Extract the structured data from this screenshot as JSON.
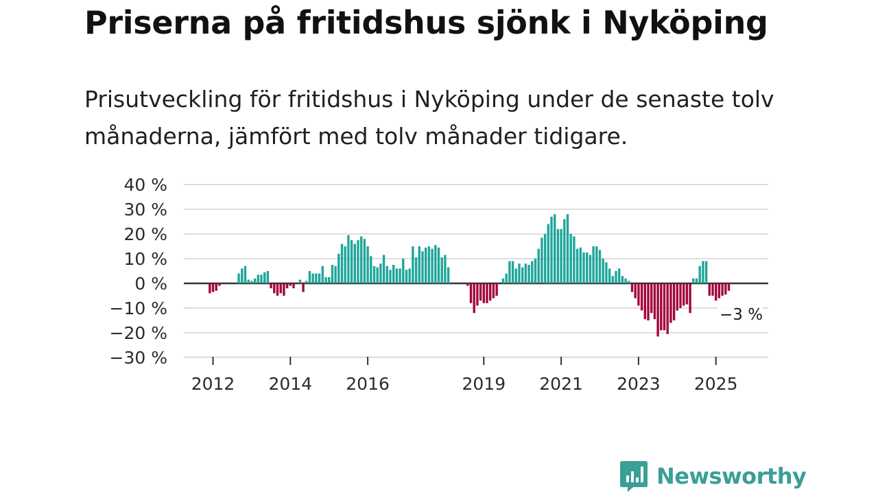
{
  "header": {
    "title": "Priserna på fritidshus sjönk i Nyköping",
    "subtitle": "Prisutveckling för fritidshus i Nyköping under de senaste tolv månaderna, jämfört med tolv månader tidigare."
  },
  "chart_data": {
    "type": "bar",
    "y_unit": "%",
    "ylim": [
      -30,
      40
    ],
    "y_ticks": [
      40,
      30,
      20,
      10,
      0,
      -10,
      -20,
      -30
    ],
    "y_tick_labels": [
      "40 %",
      "30 %",
      "20 %",
      "10 %",
      "0 %",
      "−10 %",
      "−20 %",
      "−30 %"
    ],
    "x_ticks": [
      2012,
      2014,
      2016,
      2019,
      2021,
      2023,
      2025
    ],
    "x_tick_labels": [
      "2012",
      "2014",
      "2016",
      "2019",
      "2021",
      "2023",
      "2025"
    ],
    "grid": true,
    "colors": {
      "positive": "#1fa69a",
      "negative": "#a3053e",
      "grid": "#dedede",
      "zero": "#333333"
    },
    "annotation": {
      "text": "−3 %",
      "value": -3
    },
    "series": [
      {
        "start": "2011-12",
        "end": "2012-06",
        "values": [
          -4,
          -3.5,
          -3,
          -1
        ]
      },
      {
        "start": "2012-09",
        "end": "2013-04",
        "values": [
          4,
          6,
          7,
          1.5,
          1,
          2,
          3.5,
          3.5,
          3.5
        ]
      },
      {
        "start": "2013-05",
        "end": "2013-06",
        "values": [
          4.5,
          5
        ]
      },
      {
        "start": "2013-07",
        "end": "2013-12",
        "values": [
          -2,
          -4,
          -5,
          -4,
          -5,
          -2
        ]
      },
      {
        "start": "2014-01",
        "end": "2014-02",
        "values": [
          -1,
          -2
        ]
      },
      {
        "start": "2014-04",
        "end": "2014-05",
        "values": [
          1.5,
          -3.5
        ]
      },
      {
        "start": "2014-06",
        "end": "2016-07",
        "values": [
          1,
          5,
          4,
          4,
          4,
          7,
          2.5,
          2.5,
          7.5,
          7,
          12,
          16,
          15,
          19.5,
          17.5,
          16,
          17.5,
          19,
          18,
          15,
          11,
          7,
          6.5,
          8,
          11.5,
          7
        ]
      },
      {
        "start": "2016-08",
        "end": "2017-10",
        "values": [
          5.5,
          7.5,
          6,
          6,
          10,
          5.5,
          6,
          15,
          10.5,
          15,
          13,
          14.5,
          15,
          14,
          15.5,
          14.5,
          10.5,
          11.5,
          6.5
        ]
      },
      {
        "start": "2018-08",
        "end": "2019-01",
        "values": [
          -1,
          -8,
          -12,
          -9,
          -7,
          -8
        ]
      },
      {
        "start": "2019-02",
        "end": "2019-05",
        "values": [
          -8,
          -7,
          -6,
          -5
        ]
      },
      {
        "start": "2019-07",
        "end": "2021-08",
        "values": [
          2,
          4,
          9,
          9,
          6,
          8,
          6.5,
          8,
          7.5,
          9,
          10,
          14,
          18.5,
          20,
          24,
          27,
          28,
          22,
          22,
          26,
          28,
          20,
          19,
          14,
          14.5,
          12.5
        ]
      },
      {
        "start": "2021-09",
        "end": "2022-10",
        "values": [
          12.5,
          11.5,
          15,
          15,
          13.5,
          10,
          8.5,
          6,
          3,
          5,
          6,
          3,
          2,
          1
        ]
      },
      {
        "start": "2022-11",
        "end": "2023-12",
        "values": [
          -3.5,
          -6,
          -9,
          -11,
          -14.5,
          -15,
          -12,
          -14.5,
          -21.5,
          -19,
          -19,
          -20.5,
          -16,
          -15
        ]
      },
      {
        "start": "2024-01",
        "end": "2024-05",
        "values": [
          -11,
          -10,
          -9,
          -8.5,
          -12
        ]
      },
      {
        "start": "2024-06",
        "end": "2024-10",
        "values": [
          2,
          2,
          7,
          9,
          9
        ]
      },
      {
        "start": "2024-11",
        "end": "2025-05",
        "values": [
          -5,
          -5,
          -7,
          -6,
          -5,
          -4.5,
          -3
        ]
      }
    ]
  },
  "brand": {
    "name": "Newsworthy"
  }
}
